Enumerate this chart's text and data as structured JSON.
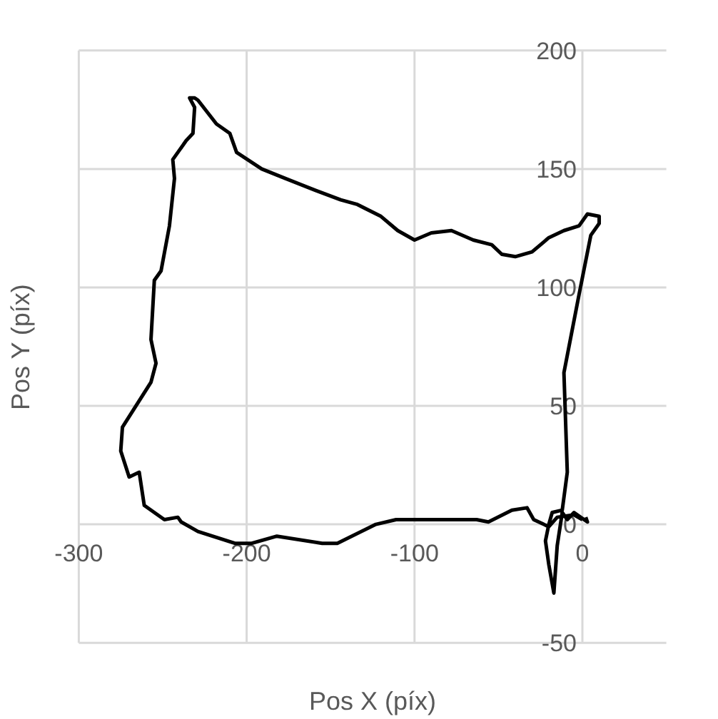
{
  "chart_data": {
    "type": "line",
    "xlabel": "Pos X (píx)",
    "ylabel": "Pos Y (píx)",
    "xlim": [
      -300,
      50
    ],
    "ylim": [
      -50,
      200
    ],
    "xticks": [
      -300,
      -200,
      -100,
      0
    ],
    "yticks": [
      -50,
      0,
      50,
      100,
      150,
      200
    ],
    "grid": true,
    "marker": "none",
    "line_style": "solid",
    "series": [
      {
        "color": "#000000",
        "x": [
          2,
          3,
          -5,
          -9,
          -12,
          -15,
          -17,
          -20,
          -22,
          -20,
          -18,
          -12,
          -9,
          -11,
          -2,
          5,
          10,
          10,
          3,
          -2,
          -11,
          -20,
          -30,
          -40,
          -48,
          -54,
          -65,
          -78,
          -90,
          -100,
          -110,
          -120,
          -134,
          -144,
          -159,
          -177,
          -191,
          -206,
          -210,
          -218,
          -229,
          -231,
          -234,
          -231,
          -232,
          -236,
          -244,
          -243,
          -246,
          -251,
          -255,
          -257,
          -254,
          -257,
          -274,
          -275,
          -270,
          -264,
          -261,
          -249,
          -241,
          -239,
          -229,
          -207,
          -197,
          -182,
          -155,
          -146,
          -123,
          -111,
          -63,
          -56,
          -42,
          -33,
          -29,
          -20,
          -15,
          -5,
          0
        ],
        "values": [
          3,
          1,
          5,
          2,
          5,
          -9,
          -29,
          -17,
          -7,
          0,
          5,
          6,
          22,
          64,
          97,
          122,
          127,
          130,
          131,
          126,
          124,
          121,
          115,
          113,
          114,
          118,
          120,
          124,
          123,
          120,
          124,
          130,
          135,
          137,
          141,
          146,
          150,
          157,
          165,
          169,
          179,
          180,
          180,
          176,
          165,
          162,
          154,
          146,
          126,
          107,
          103,
          78,
          68,
          60,
          41,
          31,
          20,
          22,
          8,
          2,
          3,
          1,
          -3,
          -8,
          -8,
          -5,
          -8,
          -8,
          0,
          2,
          2,
          1,
          6,
          7,
          2,
          -1,
          3,
          4,
          2
        ]
      }
    ]
  }
}
